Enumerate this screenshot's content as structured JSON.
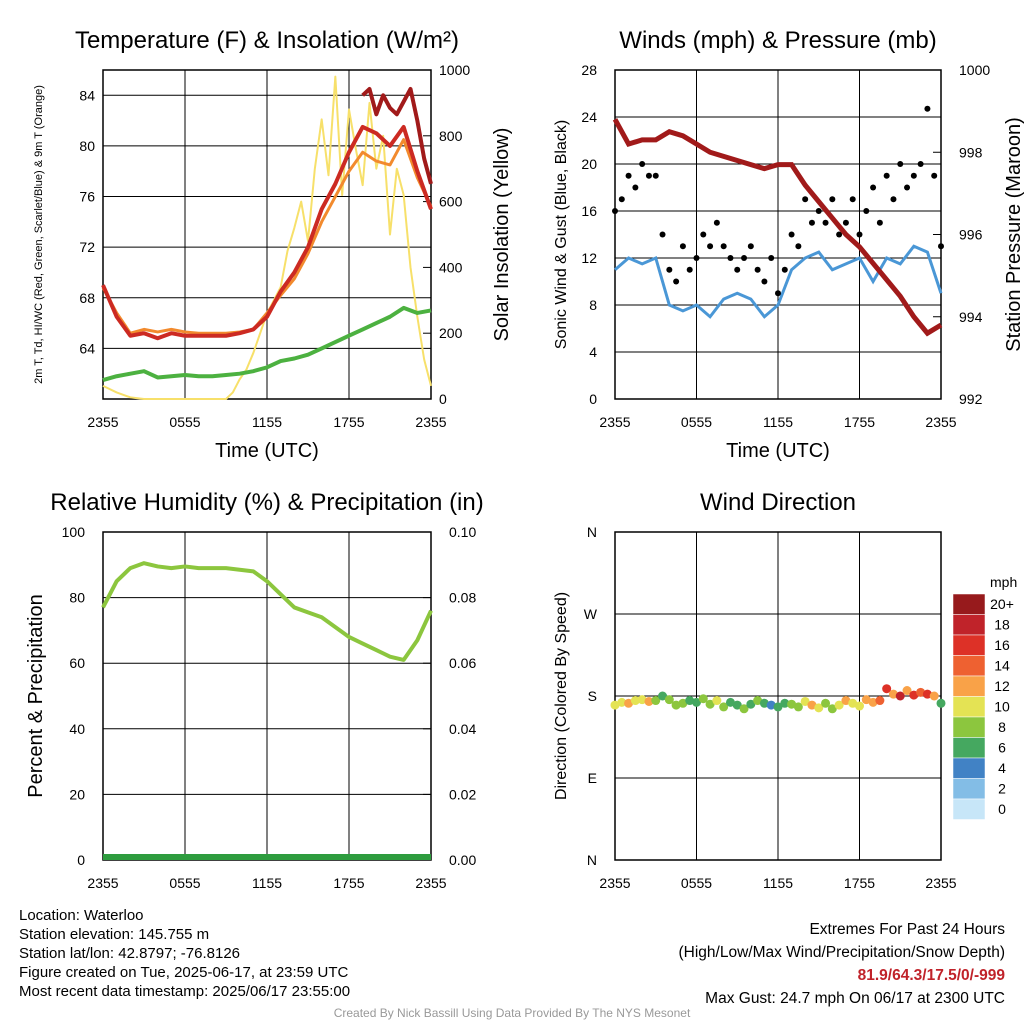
{
  "colors": {
    "red": "#cc2a22",
    "orange": "#f28a2d",
    "yellow": "#f7e06a",
    "green": "#4cb140",
    "maroon": "#a11a1a",
    "blue": "#4a97d6",
    "black": "#000000",
    "rh": "#8cc63e",
    "precip": "#2e9c3e"
  },
  "chart_data": [
    {
      "type": "line",
      "title": "Temperature (F) & Insolation (W/m²)",
      "xlabel": "Time (UTC)",
      "ylabel": "2m T, Td, HI/WC (Red, Green, Scarlet/Blue) & 9m T (Orange)",
      "y2label": "Solar Insolation (Yellow)",
      "x_ticks": [
        "2355",
        "0555",
        "1155",
        "1755",
        "2355"
      ],
      "y_ticks": [
        "64",
        "68",
        "72",
        "76",
        "80",
        "84"
      ],
      "y2_ticks": [
        "0",
        "200",
        "400",
        "600",
        "800",
        "1000"
      ],
      "ylim": [
        60,
        86
      ],
      "y2lim": [
        0,
        1000
      ],
      "grid": true,
      "series": [
        {
          "color": "red",
          "axis": "y",
          "width": 4,
          "x": [
            0,
            1,
            2,
            3,
            4,
            5,
            6,
            7,
            8,
            9,
            10,
            11,
            12,
            13,
            14,
            15,
            16,
            17,
            18,
            19,
            20,
            21,
            22,
            23,
            24
          ],
          "values": [
            69,
            66.5,
            65,
            65.2,
            64.8,
            65.2,
            65,
            65,
            65,
            65,
            65.2,
            65.5,
            66.5,
            68.5,
            70,
            72,
            75,
            77,
            79.5,
            81.5,
            81,
            80,
            81.5,
            78,
            75
          ]
        },
        {
          "color": "orange",
          "axis": "y",
          "width": 3,
          "x": [
            0,
            1,
            2,
            3,
            4,
            5,
            6,
            7,
            8,
            9,
            10,
            11,
            12,
            13,
            14,
            15,
            16,
            17,
            18,
            19,
            20,
            21,
            22,
            23,
            24
          ],
          "values": [
            68.8,
            66.8,
            65.2,
            65.5,
            65.3,
            65.5,
            65.3,
            65.2,
            65.2,
            65.2,
            65.3,
            65.5,
            66.8,
            68.2,
            69.5,
            71.5,
            74,
            76,
            78,
            79.5,
            78.8,
            78.5,
            80.5,
            77.5,
            75.2
          ]
        },
        {
          "color": "maroon",
          "axis": "y",
          "width": 4,
          "x": [
            19,
            19.5,
            20,
            20.5,
            21,
            21.5,
            22,
            22.5,
            23,
            23.5,
            24
          ],
          "values": [
            84,
            84.5,
            82.5,
            84,
            83,
            82.5,
            83.5,
            84.5,
            82,
            79,
            77
          ]
        },
        {
          "color": "green",
          "axis": "y",
          "width": 4,
          "x": [
            0,
            1,
            2,
            3,
            4,
            5,
            6,
            7,
            8,
            9,
            10,
            11,
            12,
            13,
            14,
            15,
            16,
            17,
            18,
            19,
            20,
            21,
            22,
            23,
            24
          ],
          "values": [
            61.5,
            61.8,
            62,
            62.2,
            61.7,
            61.8,
            61.9,
            61.8,
            61.8,
            61.9,
            62,
            62.2,
            62.5,
            63,
            63.2,
            63.5,
            64,
            64.5,
            65,
            65.5,
            66,
            66.5,
            67.2,
            66.8,
            67
          ]
        },
        {
          "color": "yellow",
          "axis": "y2",
          "width": 2,
          "x": [
            0,
            1,
            2,
            3,
            4,
            5,
            6,
            7,
            8,
            9,
            9.5,
            10,
            10.5,
            11,
            11.5,
            12,
            12.5,
            13,
            13.5,
            14,
            14.5,
            15,
            15.5,
            16,
            16.5,
            17,
            17.5,
            18,
            18.5,
            19,
            19.5,
            20,
            20.5,
            21,
            21.5,
            22,
            22.5,
            23,
            23.5,
            24
          ],
          "values": [
            40,
            20,
            5,
            0,
            0,
            0,
            0,
            0,
            0,
            0,
            20,
            60,
            90,
            140,
            200,
            260,
            300,
            340,
            450,
            520,
            600,
            480,
            700,
            850,
            680,
            980,
            620,
            880,
            760,
            650,
            900,
            700,
            800,
            500,
            700,
            620,
            400,
            250,
            120,
            40
          ]
        }
      ]
    },
    {
      "type": "line",
      "title": "Winds (mph) & Pressure (mb)",
      "xlabel": "Time (UTC)",
      "ylabel": "Sonic Wind & Gust (Blue, Black)",
      "y2label": "Station Pressure (Maroon)",
      "x_ticks": [
        "2355",
        "0555",
        "1155",
        "1755",
        "2355"
      ],
      "y_ticks": [
        "0",
        "4",
        "8",
        "12",
        "16",
        "20",
        "24",
        "28"
      ],
      "y2_ticks": [
        "992",
        "994",
        "996",
        "998",
        "1000"
      ],
      "ylim": [
        0,
        28
      ],
      "y2lim": [
        992,
        1000
      ],
      "grid": true,
      "series": [
        {
          "color": "blue",
          "axis": "y",
          "width": 3,
          "x": [
            0,
            1,
            2,
            3,
            4,
            5,
            6,
            7,
            8,
            9,
            10,
            11,
            12,
            13,
            14,
            15,
            16,
            17,
            18,
            19,
            20,
            21,
            22,
            23,
            24
          ],
          "values": [
            11,
            12,
            11.5,
            12,
            8,
            7.5,
            8,
            7,
            8.5,
            9,
            8.5,
            7,
            8,
            11,
            12,
            12.5,
            11,
            11.5,
            12,
            10,
            12,
            11.5,
            13,
            12.5,
            9
          ]
        },
        {
          "color": "maroon",
          "axis": "y2",
          "width": 5,
          "x": [
            0,
            1,
            2,
            3,
            4,
            5,
            6,
            7,
            8,
            9,
            10,
            11,
            12,
            13,
            14,
            15,
            16,
            17,
            18,
            19,
            20,
            21,
            22,
            23,
            24
          ],
          "values": [
            998.8,
            998.2,
            998.3,
            998.3,
            998.5,
            998.4,
            998.2,
            998,
            997.9,
            997.8,
            997.7,
            997.6,
            997.7,
            997.7,
            997.2,
            996.8,
            996.4,
            996,
            995.7,
            995.3,
            994.9,
            994.5,
            994,
            993.6,
            993.8
          ]
        }
      ],
      "scatter": {
        "color": "black",
        "x": [
          0,
          0.5,
          1,
          1.5,
          2,
          2.5,
          3,
          3.5,
          4,
          4.5,
          5,
          5.5,
          6,
          6.5,
          7,
          7.5,
          8,
          8.5,
          9,
          9.5,
          10,
          10.5,
          11,
          11.5,
          12,
          12.5,
          13,
          13.5,
          14,
          14.5,
          15,
          15.5,
          16,
          16.5,
          17,
          17.5,
          18,
          18.5,
          19,
          19.5,
          20,
          20.5,
          21,
          21.5,
          22,
          22.5,
          23,
          23.5,
          24
        ],
        "values": [
          16,
          17,
          19,
          18,
          20,
          19,
          19,
          14,
          11,
          10,
          13,
          11,
          12,
          14,
          13,
          15,
          13,
          12,
          11,
          12,
          13,
          11,
          10,
          12,
          9,
          11,
          14,
          13,
          17,
          15,
          16,
          15,
          17,
          14,
          15,
          17,
          14,
          16,
          18,
          15,
          19,
          17,
          20,
          18,
          19,
          20,
          24.7,
          19,
          13
        ]
      }
    },
    {
      "type": "line",
      "title": "Relative Humidity (%) & Precipitation (in)",
      "xlabel": "",
      "ylabel": "Percent & Precipitation",
      "x_ticks": [
        "2355",
        "0555",
        "1155",
        "1755",
        "2355"
      ],
      "y_ticks": [
        "0",
        "20",
        "40",
        "60",
        "80",
        "100"
      ],
      "y2_ticks": [
        "0.00",
        "0.02",
        "0.04",
        "0.06",
        "0.08",
        "0.10"
      ],
      "ylim": [
        0,
        100
      ],
      "y2lim": [
        0,
        0.1
      ],
      "grid": true,
      "series": [
        {
          "color": "rh",
          "axis": "y",
          "width": 4,
          "x": [
            0,
            1,
            2,
            3,
            4,
            5,
            6,
            7,
            8,
            9,
            10,
            11,
            12,
            13,
            14,
            15,
            16,
            17,
            18,
            19,
            20,
            21,
            22,
            23,
            24
          ],
          "values": [
            77,
            85,
            89,
            90.5,
            89.5,
            89,
            89.5,
            89,
            89,
            89,
            88.5,
            88,
            85,
            81,
            77,
            75.5,
            74,
            71,
            68,
            66,
            64,
            62,
            61,
            67,
            76
          ]
        },
        {
          "color": "precip",
          "axis": "y2",
          "width": 6,
          "x": [
            0,
            24
          ],
          "values": [
            0,
            0
          ]
        }
      ]
    },
    {
      "type": "scatter",
      "title": "Wind Direction",
      "xlabel": "",
      "ylabel": "Direction (Colored By Speed)",
      "x_ticks": [
        "2355",
        "0555",
        "1155",
        "1755",
        "2355"
      ],
      "y_ticks": [
        "N",
        "E",
        "S",
        "W",
        "N"
      ],
      "ylim": [
        0,
        360
      ],
      "grid": true,
      "points": {
        "x": [
          0,
          0.5,
          1,
          1.5,
          2,
          2.5,
          3,
          3.5,
          4,
          4.5,
          5,
          5.5,
          6,
          6.5,
          7,
          7.5,
          8,
          8.5,
          9,
          9.5,
          10,
          10.5,
          11,
          11.5,
          12,
          12.5,
          13,
          13.5,
          14,
          14.5,
          15,
          15.5,
          16,
          16.5,
          17,
          17.5,
          18,
          18.5,
          19,
          19.5,
          20,
          20.5,
          21,
          21.5,
          22,
          22.5,
          23,
          23.5,
          24
        ],
        "values": [
          170,
          173,
          172,
          175,
          176,
          174,
          175,
          180,
          176,
          170,
          172,
          175,
          173,
          177,
          171,
          175,
          168,
          173,
          170,
          166,
          171,
          175,
          172,
          170,
          168,
          172,
          171,
          168,
          174,
          170,
          167,
          172,
          166,
          170,
          175,
          172,
          169,
          176,
          173,
          175,
          188,
          182,
          180,
          186,
          181,
          184,
          182,
          180,
          172
        ],
        "speeds": [
          10,
          11,
          12,
          10,
          11,
          12,
          9,
          7,
          8,
          9,
          8,
          7,
          6,
          8,
          9,
          10,
          8,
          7,
          6,
          9,
          7,
          8,
          6,
          5,
          6,
          7,
          8,
          9,
          10,
          12,
          11,
          9,
          8,
          11,
          12,
          10,
          11,
          12,
          12,
          14,
          16,
          13,
          18,
          12,
          16,
          14,
          17,
          13,
          6
        ]
      },
      "legend": {
        "unit": "mph",
        "labels": [
          "20+",
          "18",
          "16",
          "14",
          "12",
          "10",
          "8",
          "6",
          "4",
          "2",
          "0"
        ],
        "colors": [
          "#971a1c",
          "#c0232a",
          "#dd3127",
          "#ee6131",
          "#f9a248",
          "#e4e354",
          "#8cc63e",
          "#45a860",
          "#4182c5",
          "#83bde6",
          "#c7e6f8"
        ]
      }
    }
  ],
  "info": {
    "location": "Location: Waterloo",
    "elevation": "Station elevation: 145.755 m",
    "latlon": "Station lat/lon: 42.8797; -76.8126",
    "created": "Figure created on Tue, 2025-06-17, at 23:59 UTC",
    "recent": "Most recent data timestamp: 2025/06/17 23:55:00"
  },
  "extremes": {
    "title": "Extremes For Past 24 Hours",
    "subtitle": "(High/Low/Max Wind/Precipitation/Snow Depth)",
    "values": "81.9/64.3/17.5/0/-999",
    "gust": "Max Gust: 24.7 mph On 06/17 at 2300 UTC"
  },
  "credit": "Created By Nick Bassill Using Data Provided By The NYS Mesonet"
}
